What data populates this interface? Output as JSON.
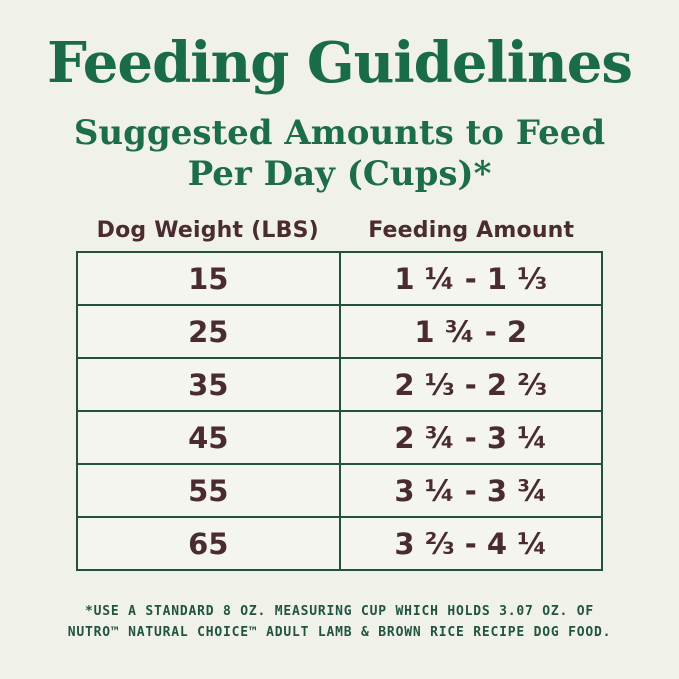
{
  "page": {
    "title": "Feeding Guidelines",
    "subtitle_line1": "Suggested Amounts to Feed",
    "subtitle_line2": "Per Day (Cups)*"
  },
  "table": {
    "headers": {
      "weight": "Dog Weight (LBS)",
      "amount": "Feeding Amount"
    },
    "rows": [
      {
        "weight": "15",
        "amount": "1 ¼ - 1 ⅓"
      },
      {
        "weight": "25",
        "amount": "1 ¾ - 2"
      },
      {
        "weight": "35",
        "amount": "2 ⅓ - 2 ⅔"
      },
      {
        "weight": "45",
        "amount": "2 ¾ - 3 ¼"
      },
      {
        "weight": "55",
        "amount": "3 ¼ - 3 ¾"
      },
      {
        "weight": "65",
        "amount": "3 ⅔ - 4 ¼"
      }
    ]
  },
  "footnote": {
    "line1": "*USE A STANDARD 8 OZ. MEASURING CUP WHICH HOLDS 3.07 OZ. OF",
    "line2": "NUTRO™ NATURAL CHOICE™ ADULT LAMB & BROWN RICE RECIPE DOG FOOD."
  },
  "colors": {
    "background": "#f0f1e9",
    "title_green": "#1a6b48",
    "border_green": "#24513f",
    "footnote_green": "#215441",
    "text_brown": "#4a2c30"
  },
  "chart_data": {
    "type": "table",
    "title": "Suggested Amounts to Feed Per Day (Cups)",
    "columns": [
      "Dog Weight (LBS)",
      "Feeding Amount"
    ],
    "rows": [
      [
        "15",
        "1 ¼ - 1 ⅓"
      ],
      [
        "25",
        "1 ¾ - 2"
      ],
      [
        "35",
        "2 ⅓ - 2 ⅔"
      ],
      [
        "45",
        "2 ¾ - 3 ¼"
      ],
      [
        "55",
        "3 ¼ - 3 ¾"
      ],
      [
        "65",
        "3 ⅔ - 4 ¼"
      ]
    ]
  }
}
